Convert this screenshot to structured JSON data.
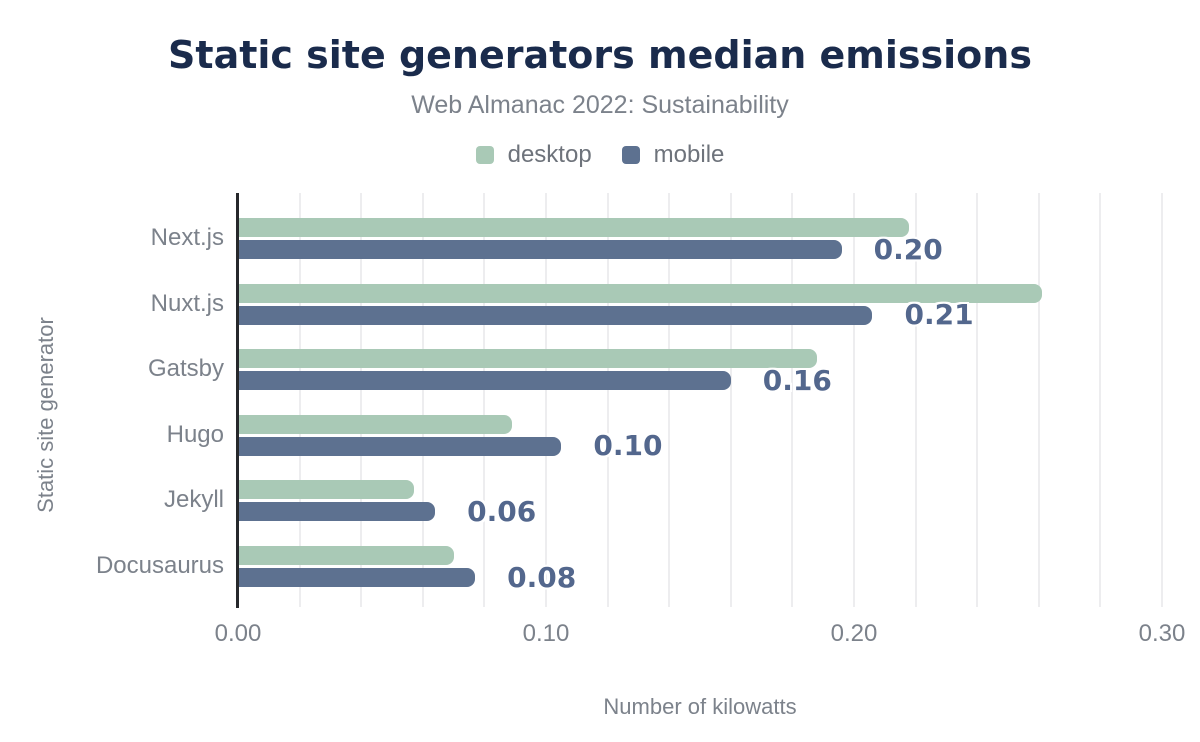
{
  "chart": {
    "title": "Static site generators median emissions",
    "subtitle": "Web Almanac 2022: Sustainability",
    "xlabel": "Number of kilowatts",
    "ylabel": "Static site generator"
  },
  "chart_data": {
    "type": "bar",
    "orientation": "horizontal",
    "title": "Static site generators median emissions",
    "subtitle": "Web Almanac 2022: Sustainability",
    "xlabel": "Number of kilowatts",
    "ylabel": "Static site generator",
    "categories": [
      "Next.js",
      "Nuxt.js",
      "Gatsby",
      "Hugo",
      "Jekyll",
      "Docusaurus"
    ],
    "series": [
      {
        "name": "desktop",
        "color": "#a9c9b6",
        "values": [
          0.218,
          0.261,
          0.188,
          0.089,
          0.057,
          0.07
        ]
      },
      {
        "name": "mobile",
        "color": "#5d7190",
        "values": [
          0.196,
          0.206,
          0.16,
          0.105,
          0.064,
          0.077
        ]
      }
    ],
    "data_labels": {
      "series": "mobile",
      "texts": [
        "0.20",
        "0.21",
        "0.16",
        "0.10",
        "0.06",
        "0.08"
      ]
    },
    "xlim": [
      0,
      0.3
    ],
    "xticks": [
      {
        "value": 0.0,
        "label": "0.00"
      },
      {
        "value": 0.1,
        "label": "0.10"
      },
      {
        "value": 0.2,
        "label": "0.20"
      },
      {
        "value": 0.3,
        "label": "0.30"
      }
    ],
    "gridline_interval": 0.02,
    "grid": "vertical-only",
    "legend_position": "top"
  },
  "colors": {
    "background": "#ffffff",
    "title": "#1a2b4c",
    "subtitle": "#7c828b",
    "axis_text": "#7c828b",
    "legend_text": "#6e737b",
    "annotation": "#53678d",
    "desktop": "#a9c9b6",
    "mobile": "#5d7190",
    "gridline": "#ededef",
    "axis_line": "#26282b"
  }
}
